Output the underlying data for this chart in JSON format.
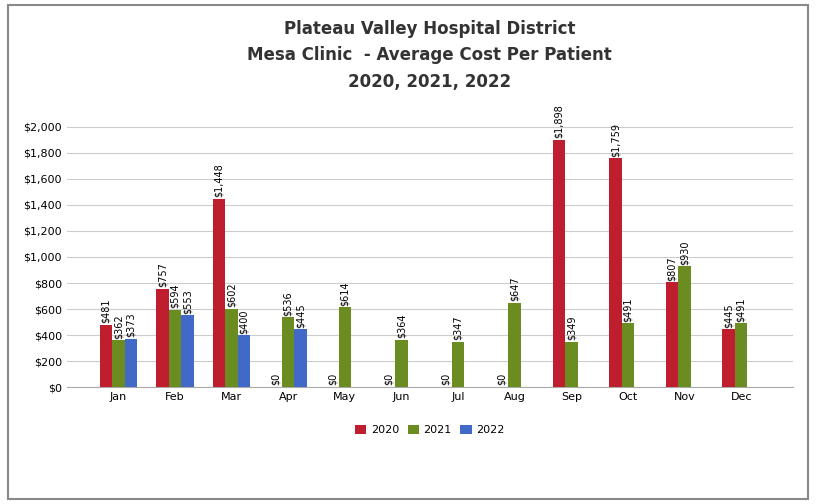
{
  "title_line1": "Plateau Valley Hospital District",
  "title_line2": "Mesa Clinic  - Average Cost Per Patient",
  "title_line3": "2020, 2021, 2022",
  "months": [
    "Jan",
    "Feb",
    "Mar",
    "Apr",
    "May",
    "Jun",
    "Jul",
    "Aug",
    "Sep",
    "Oct",
    "Nov",
    "Dec"
  ],
  "series_2020": [
    481,
    757,
    1448,
    0,
    0,
    0,
    0,
    0,
    1898,
    1759,
    807,
    445
  ],
  "series_2021": [
    362,
    594,
    602,
    536,
    614,
    364,
    347,
    647,
    349,
    491,
    930,
    491
  ],
  "series_2022": [
    373,
    553,
    400,
    445,
    0,
    0,
    0,
    0,
    0,
    0,
    0,
    0
  ],
  "show_zero_2020": [
    false,
    false,
    false,
    true,
    true,
    true,
    true,
    true,
    false,
    false,
    false,
    false
  ],
  "show_zero_2021": [
    false,
    false,
    false,
    false,
    false,
    false,
    false,
    false,
    false,
    false,
    false,
    false
  ],
  "show_zero_2022": [
    false,
    false,
    false,
    false,
    false,
    false,
    false,
    false,
    false,
    false,
    false,
    false
  ],
  "color_2020": "#BE1E2D",
  "color_2021": "#6B8C21",
  "color_2022": "#4169C8",
  "legend_labels": [
    "2020",
    "2021",
    "2022"
  ],
  "ylim": [
    0,
    2200
  ],
  "ytick_step": 200,
  "bar_width": 0.22,
  "background_color": "#FFFFFF",
  "grid_color": "#CCCCCC",
  "title_fontsize": 12,
  "label_fontsize": 7,
  "tick_fontsize": 8,
  "legend_fontsize": 8,
  "figure_width": 8.16,
  "figure_height": 5.04,
  "figure_dpi": 100
}
